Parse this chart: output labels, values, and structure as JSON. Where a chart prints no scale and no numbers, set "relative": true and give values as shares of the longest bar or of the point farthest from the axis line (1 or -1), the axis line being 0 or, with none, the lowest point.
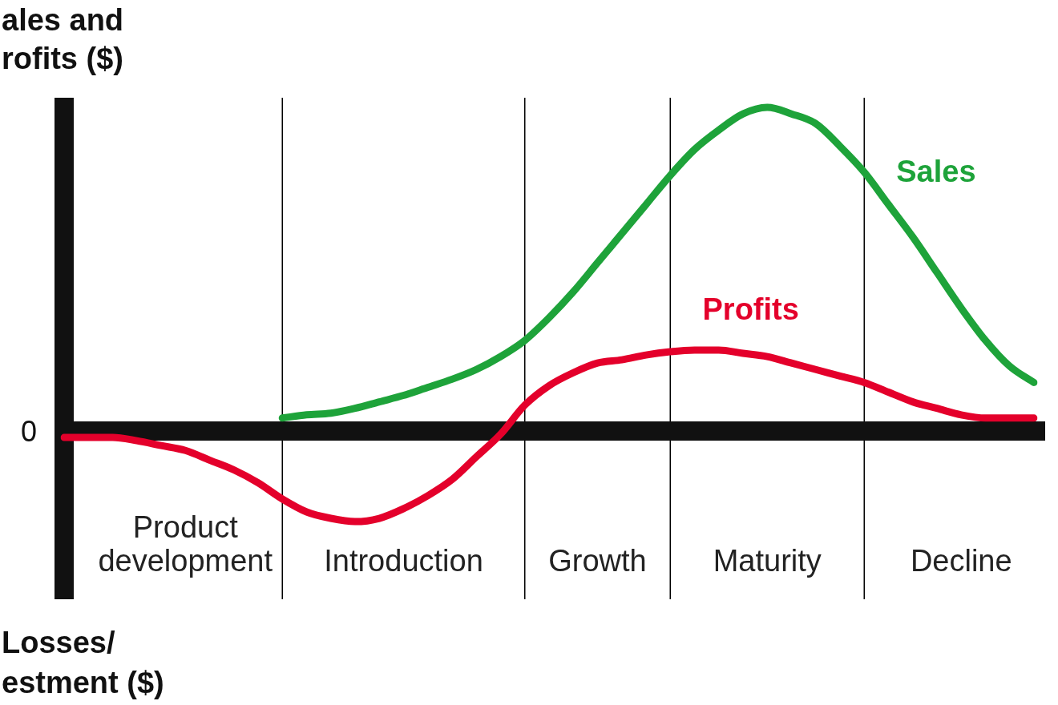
{
  "chart_data": {
    "type": "line",
    "relative": true,
    "ylabel": "ales and\nrofits ($)",
    "legend": false,
    "grid": "x",
    "marker": "none",
    "categories": [
      null,
      null,
      null,
      null,
      null,
      "Product\ndevelopment",
      null,
      null,
      null,
      null,
      null,
      null,
      null,
      null,
      "Introduction",
      null,
      null,
      null,
      null,
      null,
      null,
      null,
      "Growth",
      null,
      null,
      null,
      null,
      null,
      null,
      "Maturity",
      null,
      null,
      null,
      null,
      null,
      null,
      null,
      "Decline",
      null,
      null,
      null
    ],
    "annotations": [
      "0",
      "Losses/\nestment ($)"
    ],
    "series": [
      {
        "name": "Sales",
        "color": "#1ea33a",
        "values": [
          null,
          null,
          null,
          null,
          null,
          null,
          null,
          null,
          null,
          0.04,
          0.05,
          0.055,
          0.07,
          0.09,
          0.11,
          0.135,
          0.16,
          0.19,
          0.23,
          0.28,
          0.35,
          0.43,
          0.52,
          0.61,
          0.7,
          0.79,
          0.87,
          0.93,
          0.98,
          1,
          0.98,
          0.95,
          0.88,
          0.8,
          0.7,
          0.6,
          0.49,
          0.38,
          0.28,
          0.2,
          0.15
        ]
      },
      {
        "name": "Profits",
        "color": "#e4002b",
        "values": [
          -0.02,
          -0.02,
          -0.02,
          -0.03,
          -0.045,
          -0.06,
          -0.09,
          -0.12,
          -0.16,
          -0.21,
          -0.25,
          -0.27,
          -0.28,
          -0.27,
          -0.24,
          -0.2,
          -0.15,
          -0.08,
          -0.01,
          0.08,
          0.14,
          0.18,
          0.21,
          0.22,
          0.235,
          0.245,
          0.25,
          0.25,
          0.24,
          0.23,
          0.21,
          0.19,
          0.17,
          0.15,
          0.12,
          0.09,
          0.07,
          0.05,
          0.04,
          0.04,
          0.04
        ]
      }
    ]
  }
}
